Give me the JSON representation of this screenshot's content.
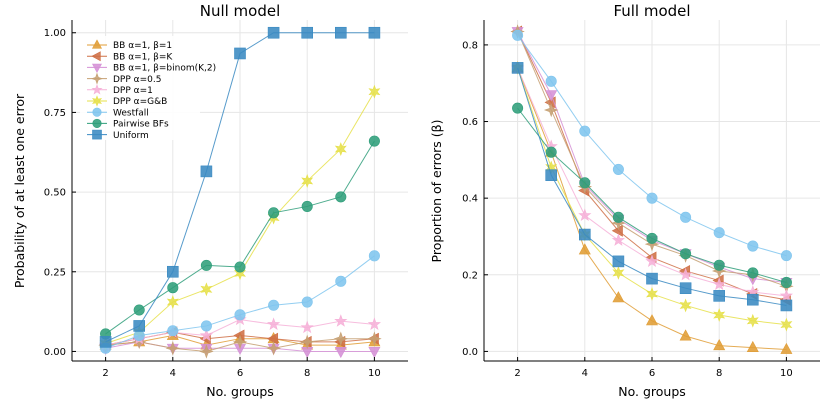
{
  "chart_data": [
    {
      "type": "line",
      "title": "Null model",
      "xlabel": "No. groups",
      "ylabel": "Probability of at least one error",
      "x": [
        2,
        3,
        4,
        5,
        6,
        7,
        8,
        9,
        10
      ],
      "xlim": [
        1,
        11
      ],
      "ylim": [
        -0.03,
        1.04
      ],
      "xticks": [
        2,
        4,
        6,
        8,
        10
      ],
      "xtick_labels": [
        "2",
        "4",
        "6",
        "8",
        "10"
      ],
      "yticks": [
        0,
        0.25,
        0.5,
        0.75,
        1
      ],
      "ytick_labels": [
        "0.00",
        "0.25",
        "0.50",
        "0.75",
        "1.00"
      ],
      "legend_position": "top-left",
      "series": [
        {
          "name": "BB α=1, β=1",
          "color": "#e09d36",
          "marker": "triangle-up",
          "values": [
            0.02,
            0.03,
            0.05,
            0.02,
            0.04,
            0.04,
            0.02,
            0.02,
            0.03
          ]
        },
        {
          "name": "BB α=1, β=K",
          "color": "#cf7046",
          "marker": "triangle-left",
          "values": [
            0.02,
            0.04,
            0.06,
            0.04,
            0.05,
            0.04,
            0.03,
            0.03,
            0.04
          ]
        },
        {
          "name": "BB α=1, β=binom(K,2)",
          "color": "#d591d6",
          "marker": "triangle-down",
          "values": [
            0.01,
            0.03,
            0.01,
            0.01,
            0.01,
            0.01,
            0.0,
            0.0,
            0.0
          ]
        },
        {
          "name": "DPP α=0.5",
          "color": "#c6a073",
          "marker": "star4",
          "values": [
            0.02,
            0.03,
            0.01,
            0.0,
            0.03,
            0.01,
            0.03,
            0.04,
            0.04
          ]
        },
        {
          "name": "DPP α=1",
          "color": "#f6b1d8",
          "marker": "star5",
          "values": [
            0.02,
            0.04,
            0.06,
            0.05,
            0.1,
            0.085,
            0.075,
            0.095,
            0.085
          ]
        },
        {
          "name": "DPP α=G&B",
          "color": "#e6e04a",
          "marker": "star6",
          "values": [
            0.025,
            0.06,
            0.155,
            0.195,
            0.245,
            0.42,
            0.535,
            0.635,
            0.815
          ]
        },
        {
          "name": "Westfall",
          "color": "#80c5ee",
          "marker": "circle",
          "values": [
            0.01,
            0.05,
            0.065,
            0.08,
            0.115,
            0.145,
            0.155,
            0.22,
            0.3
          ]
        },
        {
          "name": "Pairwise BFs",
          "color": "#2f9e7a",
          "marker": "circle",
          "values": [
            0.055,
            0.13,
            0.2,
            0.27,
            0.265,
            0.435,
            0.455,
            0.485,
            0.66
          ]
        },
        {
          "name": "Uniform",
          "color": "#3a8ac2",
          "marker": "square",
          "values": [
            0.03,
            0.08,
            0.25,
            0.565,
            0.935,
            1.0,
            1.0,
            1.0,
            1.0
          ]
        }
      ]
    },
    {
      "type": "line",
      "title": "Full model",
      "xlabel": "No. groups",
      "ylabel": "Proportion of errors (β)",
      "x": [
        2,
        3,
        4,
        5,
        6,
        7,
        8,
        9,
        10
      ],
      "xlim": [
        1,
        11
      ],
      "ylim": [
        -0.025,
        0.865
      ],
      "xticks": [
        2,
        4,
        6,
        8,
        10
      ],
      "xtick_labels": [
        "2",
        "4",
        "6",
        "8",
        "10"
      ],
      "yticks": [
        0,
        0.2,
        0.4,
        0.6,
        0.8
      ],
      "ytick_labels": [
        "0.0",
        "0.2",
        "0.4",
        "0.6",
        "0.8"
      ],
      "series": [
        {
          "name": "BB α=1, β=1",
          "color": "#e09d36",
          "marker": "triangle-up",
          "values": [
            0.74,
            0.52,
            0.265,
            0.14,
            0.08,
            0.04,
            0.015,
            0.01,
            0.005
          ]
        },
        {
          "name": "BB α=1, β=K",
          "color": "#cf7046",
          "marker": "triangle-left",
          "values": [
            0.835,
            0.65,
            0.42,
            0.315,
            0.245,
            0.21,
            0.185,
            0.15,
            0.135
          ]
        },
        {
          "name": "BB α=1, β=binom(K,2)",
          "color": "#d591d6",
          "marker": "triangle-down",
          "values": [
            0.835,
            0.67,
            0.435,
            0.345,
            0.29,
            0.255,
            0.22,
            0.19,
            0.18
          ]
        },
        {
          "name": "DPP α=0.5",
          "color": "#c6a073",
          "marker": "star4",
          "values": [
            0.835,
            0.63,
            0.43,
            0.335,
            0.28,
            0.25,
            0.21,
            0.2,
            0.17
          ]
        },
        {
          "name": "DPP α=1",
          "color": "#f6b1d8",
          "marker": "star5",
          "values": [
            0.74,
            0.535,
            0.355,
            0.29,
            0.235,
            0.2,
            0.175,
            0.155,
            0.145
          ]
        },
        {
          "name": "DPP α=G&B",
          "color": "#e6e04a",
          "marker": "star6",
          "values": [
            0.74,
            0.48,
            0.305,
            0.205,
            0.15,
            0.12,
            0.095,
            0.08,
            0.07
          ]
        },
        {
          "name": "Westfall",
          "color": "#80c5ee",
          "marker": "circle",
          "values": [
            0.825,
            0.705,
            0.575,
            0.475,
            0.4,
            0.35,
            0.31,
            0.275,
            0.25
          ]
        },
        {
          "name": "Pairwise BFs",
          "color": "#2f9e7a",
          "marker": "circle",
          "values": [
            0.635,
            0.52,
            0.44,
            0.35,
            0.295,
            0.255,
            0.225,
            0.205,
            0.18
          ]
        },
        {
          "name": "Uniform",
          "color": "#3a8ac2",
          "marker": "square",
          "values": [
            0.74,
            0.46,
            0.305,
            0.235,
            0.19,
            0.165,
            0.145,
            0.135,
            0.12
          ]
        }
      ]
    }
  ]
}
